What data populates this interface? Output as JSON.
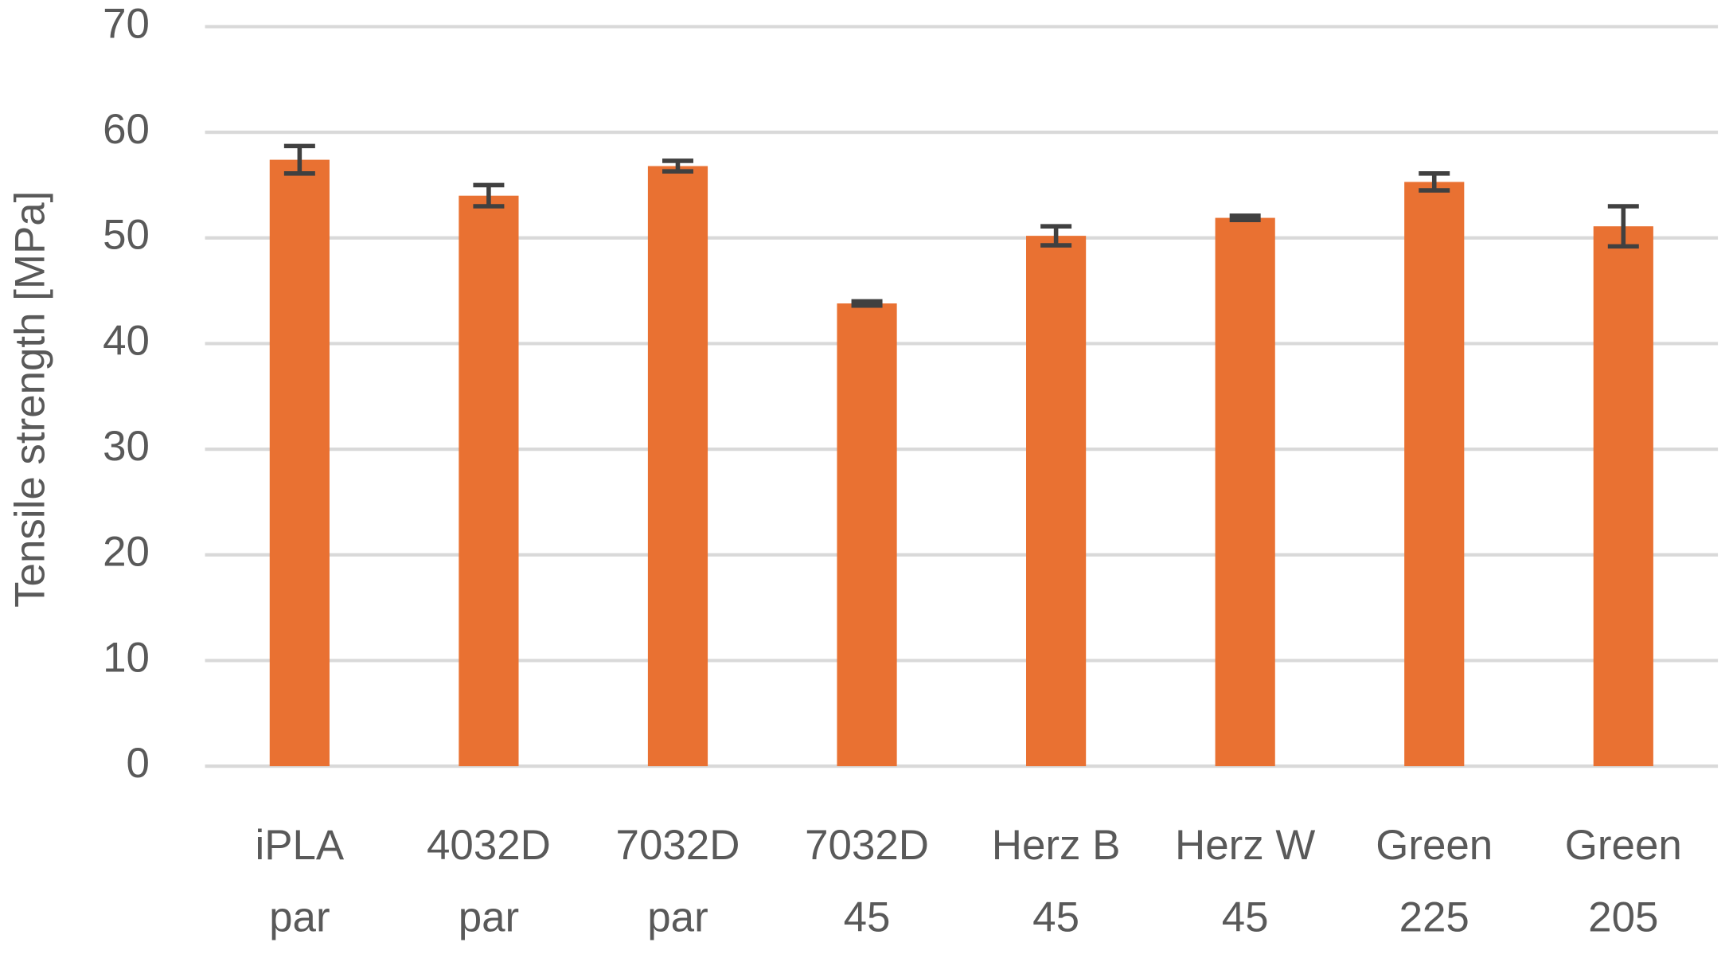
{
  "chart_data": {
    "type": "bar",
    "y_label": "Tensile strength [MPa]",
    "categories": [
      [
        "iPLA",
        "par"
      ],
      [
        "4032D",
        "par"
      ],
      [
        "7032D",
        "par"
      ],
      [
        "7032D",
        "45"
      ],
      [
        "Herz B",
        "45"
      ],
      [
        "Herz W",
        "45"
      ],
      [
        "Green",
        "225"
      ],
      [
        "Green",
        "205"
      ]
    ],
    "values": [
      57.4,
      54.0,
      56.8,
      43.8,
      50.2,
      51.9,
      55.3,
      51.1
    ],
    "errors": [
      1.3,
      1.0,
      0.5,
      0.2,
      0.9,
      0.2,
      0.8,
      1.9
    ],
    "color": "#e97132",
    "error_color": "#404040",
    "ylim": [
      0,
      70
    ],
    "yticks": [
      0,
      10,
      20,
      30,
      40,
      50,
      60,
      70
    ],
    "grid": true
  }
}
